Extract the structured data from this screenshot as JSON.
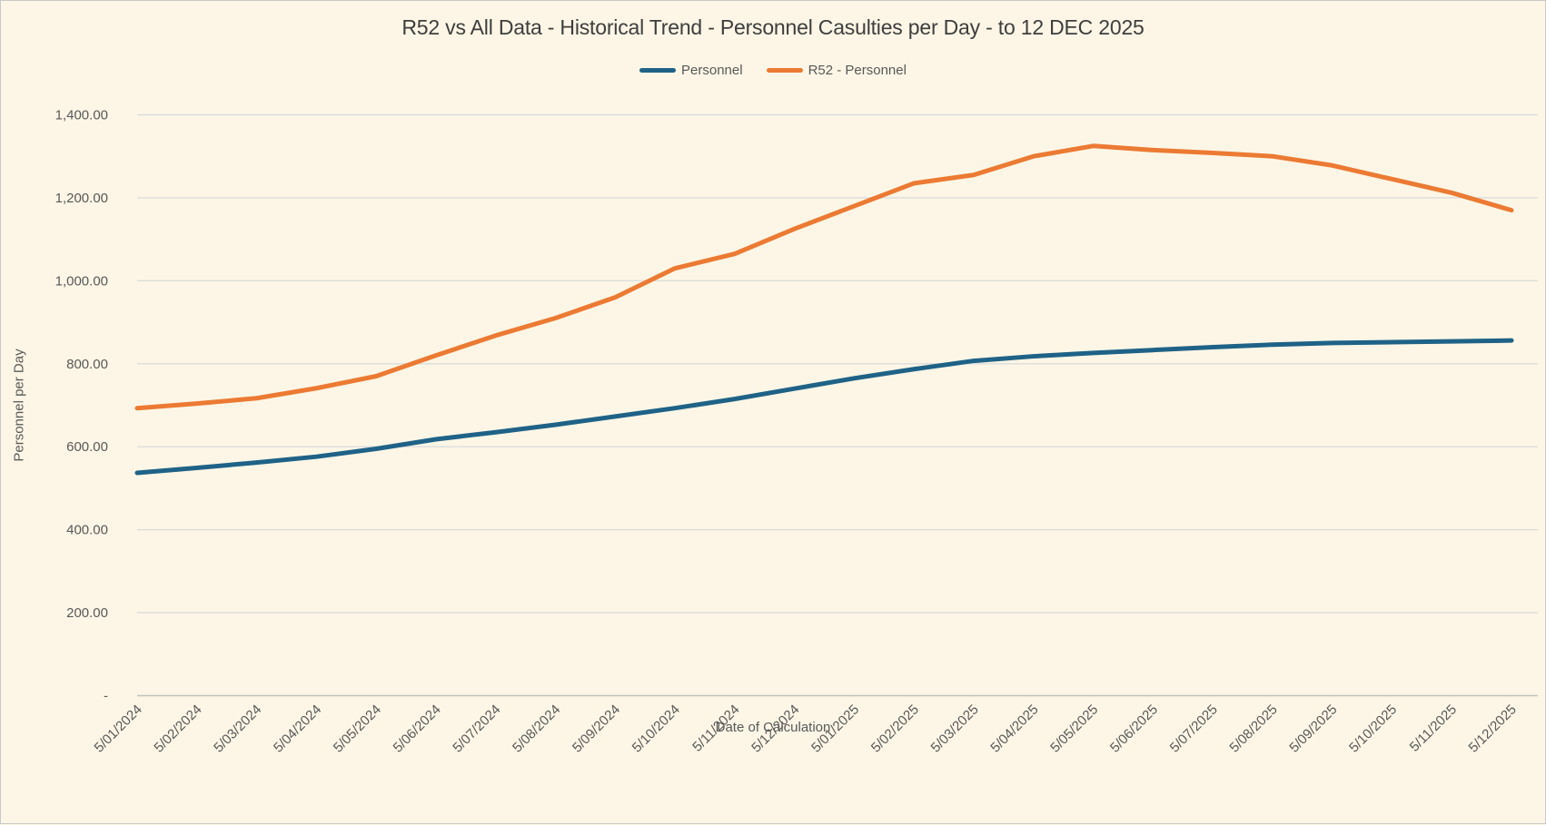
{
  "title": "R52 vs All Data - Historical Trend - Personnel Casulties per Day - to 12 DEC 2025",
  "legend": {
    "items": [
      {
        "label": "Personnel",
        "color": "#1f6287"
      },
      {
        "label": "R52 - Personnel",
        "color": "#ec7a33"
      }
    ]
  },
  "colors": {
    "background": "#fdf6e6",
    "gridline": "#dcdcdc",
    "axis_line": "#c0c0c0",
    "text": "#595959",
    "title_text": "#3e3e3e",
    "series_personnel": "#1f6287",
    "series_r52": "#ec7a33"
  },
  "chart_data": {
    "type": "line",
    "title": "R52 vs All Data - Historical Trend - Personnel Casulties per Day - to 12 DEC 2025",
    "xlabel": "Date of Calculation",
    "ylabel": "Personnel per Day",
    "grid": true,
    "legend_position": "top",
    "ylim": [
      0,
      1400
    ],
    "ytick_step": 200,
    "ytick_labels": [
      "-",
      "200.00",
      "400.00",
      "600.00",
      "800.00",
      "1,000.00",
      "1,200.00",
      "1,400.00"
    ],
    "categories": [
      "5/01/2024",
      "5/02/2024",
      "5/03/2024",
      "5/04/2024",
      "5/05/2024",
      "5/06/2024",
      "5/07/2024",
      "5/08/2024",
      "5/09/2024",
      "5/10/2024",
      "5/11/2024",
      "5/12/2024",
      "5/01/2025",
      "5/02/2025",
      "5/03/2025",
      "5/04/2025",
      "5/05/2025",
      "5/06/2025",
      "5/07/2025",
      "5/08/2025",
      "5/09/2025",
      "5/10/2025",
      "5/11/2025",
      "5/12/2025"
    ],
    "series": [
      {
        "name": "Personnel",
        "color": "#1f6287",
        "values": [
          537,
          549,
          562,
          576,
          595,
          618,
          635,
          653,
          673,
          693,
          715,
          740,
          765,
          787,
          807,
          818,
          826,
          833,
          840,
          846,
          850,
          852,
          854,
          856
        ]
      },
      {
        "name": "R52 - Personnel",
        "color": "#ec7a33",
        "values": [
          693,
          704,
          717,
          741,
          770,
          820,
          868,
          910,
          960,
          1030,
          1065,
          1125,
          1180,
          1235,
          1255,
          1300,
          1325,
          1315,
          1308,
          1300,
          1278,
          1245,
          1212,
          1170
        ]
      }
    ]
  }
}
